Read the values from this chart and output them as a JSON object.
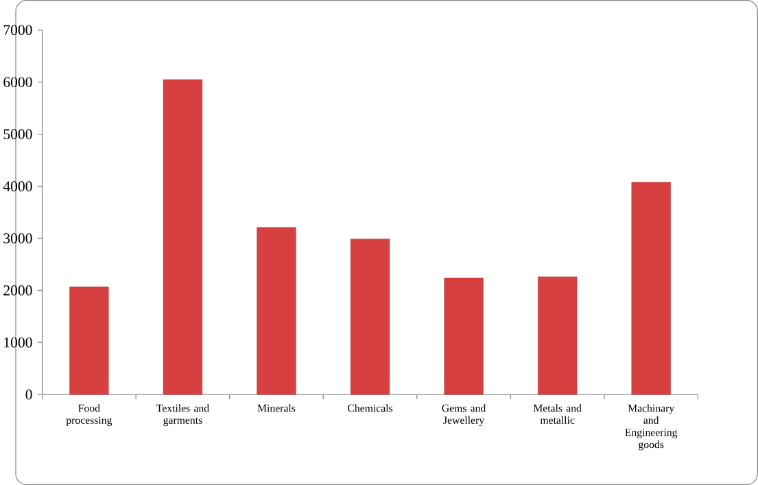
{
  "chart_data": {
    "type": "bar",
    "categories": [
      "Food processing",
      "Textiles and garments",
      "Minerals",
      "Chemicals",
      "Gems and Jewellery",
      "Metals and metallic",
      "Machinary and Engineering goods"
    ],
    "values": [
      2070,
      6050,
      3210,
      2990,
      2240,
      2260,
      4080
    ],
    "color": "#d64040",
    "ylim": [
      0,
      7000
    ],
    "yticks": [
      0,
      1000,
      2000,
      3000,
      4000,
      5000,
      6000,
      7000
    ]
  }
}
